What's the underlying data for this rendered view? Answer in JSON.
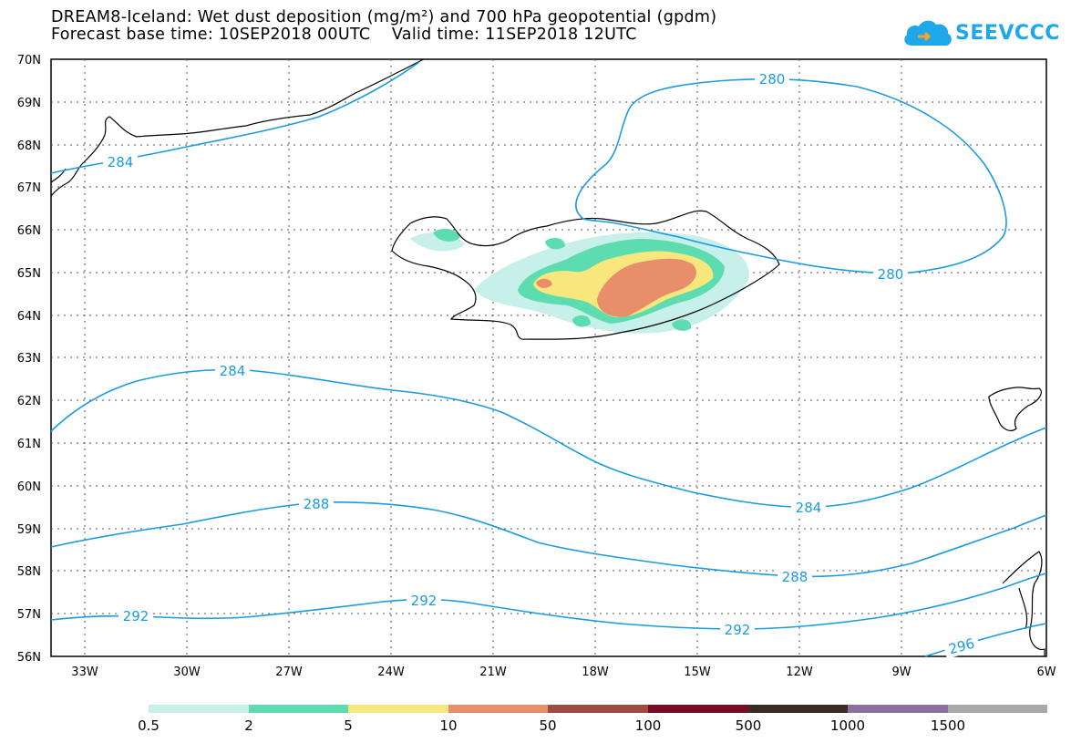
{
  "title_line1": "DREAM8-Iceland: Wet dust deposition (mg/m²) and 700 hPa geopotential (gpdm)",
  "title_line2": "Forecast base time: 10SEP2018 00UTC    Valid time: 11SEP2018 12UTC",
  "logo_text": "SEEVCCC",
  "map": {
    "lat_labels": [
      "70N",
      "69N",
      "68N",
      "67N",
      "66N",
      "65N",
      "64N",
      "63N",
      "62N",
      "61N",
      "60N",
      "59N",
      "58N",
      "57N",
      "56N"
    ],
    "lon_labels": [
      "33W",
      "30W",
      "27W",
      "24W",
      "21W",
      "18W",
      "15W",
      "12W",
      "9W",
      "6W"
    ],
    "contour_color": "#1b9be0",
    "contours": [
      {
        "value": "280",
        "labels": [
          "280",
          "280"
        ]
      },
      {
        "value": "284",
        "labels": [
          "284",
          "284",
          "284"
        ]
      },
      {
        "value": "288",
        "labels": [
          "288",
          "288"
        ]
      },
      {
        "value": "292",
        "labels": [
          "292",
          "292",
          "292"
        ]
      },
      {
        "value": "296",
        "labels": [
          "296"
        ]
      }
    ]
  },
  "legend": {
    "colors": [
      "#c8f0ea",
      "#5ddcb0",
      "#f7e77d",
      "#e98e6b",
      "#a04a40",
      "#7b0a24",
      "#3a2a22",
      "#8e6fa3",
      "#a8a8a8"
    ],
    "labels": [
      "0.5",
      "2",
      "5",
      "10",
      "50",
      "100",
      "500",
      "1000",
      "1500"
    ]
  }
}
